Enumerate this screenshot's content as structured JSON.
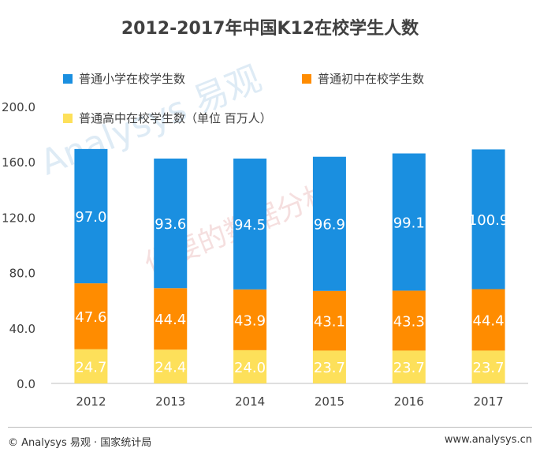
{
  "chart_data": {
    "type": "bar",
    "stacked": true,
    "title": "2012-2017年中国K12在校学生人数",
    "categories": [
      "2012",
      "2013",
      "2014",
      "2015",
      "2016",
      "2017"
    ],
    "series": [
      {
        "name": "普通高中在校学生数（单位 百万人）",
        "color": "#fde05a",
        "values": [
          24.7,
          24.4,
          24.0,
          23.7,
          23.7,
          23.7
        ],
        "labels": [
          "24.7",
          "24.4",
          "24.0",
          "23.7",
          "23.7",
          "23.7"
        ]
      },
      {
        "name": "普通初中在校学生数",
        "color": "#ff8c00",
        "values": [
          47.6,
          44.4,
          43.9,
          43.1,
          43.3,
          44.4
        ],
        "labels": [
          "47.6",
          "44.4",
          "43.9",
          "43.1",
          "43.3",
          "44.4"
        ]
      },
      {
        "name": "普通小学在校学生数",
        "color": "#1a8fe0",
        "values": [
          97.0,
          93.6,
          94.5,
          96.9,
          99.1,
          100.9
        ],
        "labels": [
          "97.0",
          "93.6",
          "94.5",
          "96.9",
          "99.1",
          "100.9"
        ]
      }
    ],
    "yticks": [
      "0.0",
      "40.0",
      "80.0",
      "120.0",
      "160.0",
      "200.0"
    ],
    "ylim": [
      0,
      200
    ],
    "grid": false,
    "legend": "top"
  },
  "legend": {
    "item1": "普通小学在校学生数",
    "item2": "普通初中在校学生数",
    "item3": "普通高中在校学生数（单位 百万人）"
  },
  "watermark": {
    "text1": "Analysys 易观",
    "text2": "你要的数据分析"
  },
  "footer": {
    "left": "© Analysys 易观 · 国家统计局",
    "right": "www.analysys.cn"
  }
}
